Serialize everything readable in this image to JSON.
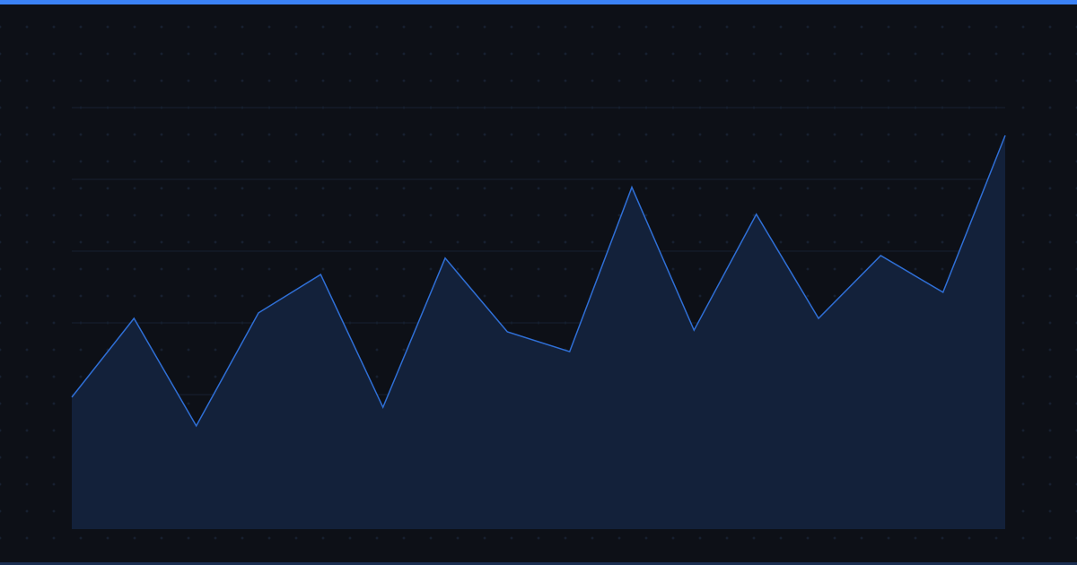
{
  "colors": {
    "background": "#0d1017",
    "accent_bar": "#3b82f6",
    "bottom_bar": "#1b2f52",
    "line": "#2f6fd6",
    "area_fill": "#13213a",
    "grid": "#172132",
    "dot": "#1a2538"
  },
  "chart_data": {
    "type": "area",
    "title": "",
    "xlabel": "",
    "ylabel": "",
    "x": [
      1,
      2,
      3,
      4,
      5,
      6,
      7,
      8,
      9,
      10,
      11,
      12,
      13,
      14,
      15,
      16
    ],
    "values": [
      31.3,
      50.0,
      24.5,
      51.3,
      60.4,
      28.9,
      64.3,
      46.8,
      42.1,
      81.1,
      47.2,
      74.7,
      50.0,
      64.9,
      56.2,
      93.4
    ],
    "ylim": [
      0,
      100
    ],
    "grid": true,
    "gridlines_y": [
      15,
      32,
      49,
      66,
      83,
      100
    ],
    "legend": "none"
  }
}
